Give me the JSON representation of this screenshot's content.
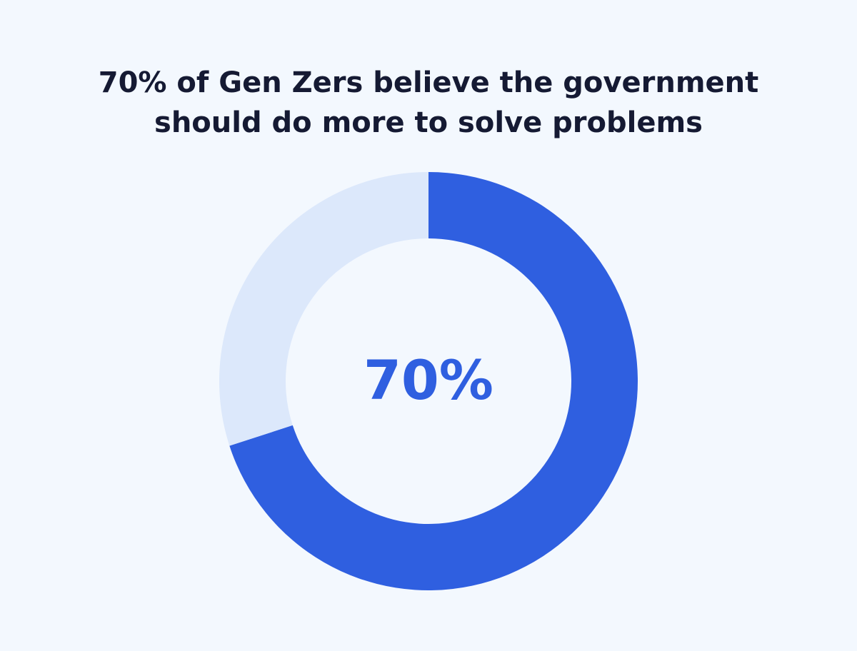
{
  "chart_data": {
    "type": "donut",
    "title": "70% of Gen Zers believe the government should do more to solve problems",
    "values": [
      70,
      30
    ],
    "value_labels": [
      "70%",
      null
    ],
    "colors": [
      "#2f5fe0",
      "#dce8fb"
    ]
  }
}
